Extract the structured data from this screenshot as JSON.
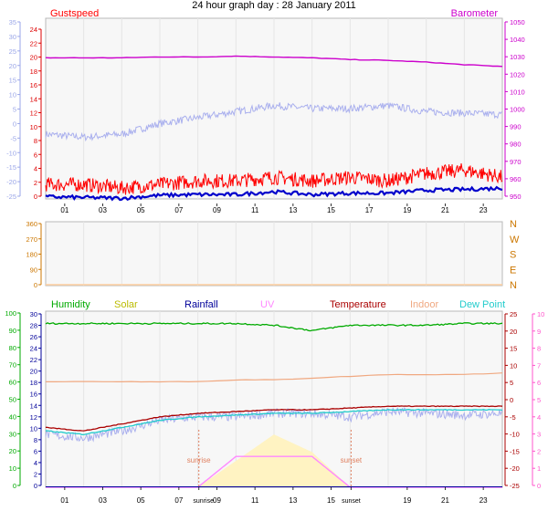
{
  "title": "24 hour graph day : 28 January 2011",
  "colors": {
    "gust": "#ff0000",
    "wind": "#0000cc",
    "barometer": "#cc00cc",
    "gustAxis": "#dd0000",
    "leftAxis": "#9aa6e8",
    "baroAxis": "#cc00cc",
    "dirAxis": "#cc7700",
    "humidity": "#00aa00",
    "solar": "#bbbb00",
    "rainfall": "#000099",
    "uv": "#ff88ff",
    "temperature": "#aa0000",
    "indoor": "#f0a880",
    "dewpoint": "#22cccc",
    "chill": "#aab0ee",
    "uvAxis": "#ff55cc",
    "grid": "#e6e6e6",
    "plotBg": "#f7f7f7",
    "sunriseLine": "#e08060",
    "solarFill": "#fff3c2"
  },
  "time_axis": {
    "labels": [
      "01",
      "03",
      "05",
      "07",
      "09",
      "11",
      "13",
      "15",
      "17",
      "19",
      "21",
      "23"
    ],
    "bottom_labels": [
      "01",
      "03",
      "05",
      "07",
      "sunrise",
      "09",
      "11",
      "13",
      "15",
      "sunset",
      "19",
      "21",
      "23"
    ]
  },
  "top_panel": {
    "gustspeed_label": "Gustspeed",
    "barometer_label": "Barometer",
    "gust_ticks": [
      "24",
      "22",
      "20",
      "18",
      "16",
      "14",
      "12",
      "10",
      "8",
      "6",
      "4",
      "2",
      "0"
    ],
    "left_ticks": [
      "35",
      "30",
      "25",
      "20",
      "15",
      "10",
      "5",
      "0",
      "-5",
      "-10",
      "-15",
      "-20",
      "-25"
    ],
    "baro_ticks": [
      "1050",
      "1040",
      "1030",
      "1020",
      "1010",
      "1000",
      "990",
      "980",
      "970",
      "960",
      "950"
    ]
  },
  "direction_panel": {
    "deg_ticks": [
      "360",
      "270",
      "180",
      "90",
      "0"
    ],
    "compass": [
      "N",
      "W",
      "S",
      "E",
      "N"
    ]
  },
  "bottom_panel": {
    "legend": [
      "Humidity",
      "Solar",
      "Rainfall",
      "UV",
      "Temperature",
      "Indoor",
      "Dew Point"
    ],
    "humidity_ticks": [
      "100",
      "90",
      "80",
      "70",
      "60",
      "50",
      "40",
      "30",
      "20",
      "10",
      "0"
    ],
    "rain_ticks": [
      "30",
      "28",
      "26",
      "24",
      "22",
      "20",
      "18",
      "16",
      "14",
      "12",
      "10",
      "8",
      "6",
      "4",
      "2",
      "0"
    ],
    "temp_ticks": [
      "25",
      "20",
      "15",
      "10",
      "5",
      "0",
      "-5",
      "-10",
      "-15",
      "-20",
      "-25"
    ],
    "uv_ticks": [
      "10",
      "9",
      "8",
      "7",
      "6",
      "5",
      "4",
      "3",
      "2",
      "1",
      "0"
    ],
    "sunrise_label": "sunrise",
    "sunset_label": "sunset"
  },
  "chart_data": [
    {
      "type": "line",
      "title": "Gustspeed / Barometer",
      "x": [
        0,
        2,
        4,
        6,
        8,
        10,
        12,
        14,
        16,
        18,
        20,
        22,
        24
      ],
      "ylim_left": [
        -25,
        35
      ],
      "ylim_gust": [
        0,
        25
      ],
      "ylim_barometer": [
        946,
        1051
      ],
      "series": [
        {
          "name": "Gustspeed",
          "axis": "gust",
          "values": [
            2,
            2,
            1.5,
            2,
            2.5,
            2.5,
            3,
            2.5,
            3,
            2.5,
            3.5,
            4,
            3
          ]
        },
        {
          "name": "Barometer",
          "axis": "barometer",
          "values": [
            1028,
            1028,
            1028,
            1028.5,
            1028.5,
            1029,
            1028.5,
            1028,
            1027,
            1026.5,
            1025.5,
            1024,
            1023
          ]
        },
        {
          "axis": "left",
          "values": [
            -3.5,
            -4.5,
            -3.5,
            0,
            2,
            4,
            6,
            5,
            5,
            6,
            4,
            3.5,
            3
          ]
        },
        {
          "axis": "gust",
          "values": [
            0.3,
            0.2,
            0.1,
            0.5,
            0.6,
            0.6,
            1,
            0.6,
            0.8,
            0.8,
            1.2,
            1.3,
            1.5
          ]
        }
      ]
    },
    {
      "type": "line",
      "title": "Wind direction",
      "ylim": [
        0,
        360
      ],
      "series": []
    },
    {
      "type": "line",
      "title": "Humidity / Solar / Rainfall / UV / Temperature / Indoor / Dew Point",
      "x": [
        0,
        2,
        4,
        6,
        8,
        10,
        12,
        14,
        16,
        18,
        20,
        22,
        24
      ],
      "ylim_humidity": [
        0,
        100
      ],
      "ylim_temperature": [
        -25,
        25
      ],
      "series": [
        {
          "name": "Humidity",
          "values": [
            93,
            93,
            93,
            93,
            93,
            93,
            92,
            89,
            92,
            92,
            92,
            93,
            93
          ]
        },
        {
          "name": "Temperature",
          "values": [
            -8,
            -9,
            -7,
            -5,
            -4,
            -3.5,
            -3,
            -3,
            -2.5,
            -2,
            -2,
            -2,
            -2
          ]
        },
        {
          "name": "Dew Point",
          "values": [
            -9,
            -10,
            -8,
            -6,
            -5,
            -4.5,
            -4,
            -4,
            -3.5,
            -3,
            -3,
            -3,
            -3
          ]
        },
        {
          "name": "Indoor",
          "values": [
            5,
            5,
            5,
            5,
            5,
            5.5,
            5.5,
            6,
            6.5,
            7,
            7,
            7,
            7.5
          ]
        },
        {
          "axis": "temperature",
          "values": [
            -10,
            -11,
            -9,
            -6,
            -5,
            -5,
            -4,
            -4,
            -5,
            -3.5,
            -4,
            -4.5,
            -4
          ]
        },
        {
          "name": "Solar",
          "values": [
            0,
            0,
            0,
            0,
            0,
            1.5,
            3,
            2,
            0,
            0,
            0,
            0,
            0
          ]
        },
        {
          "name": "UV",
          "values": [
            0,
            0,
            0,
            0,
            0,
            0.5,
            0.5,
            0.5,
            0,
            0,
            0,
            0,
            0
          ]
        }
      ]
    }
  ]
}
